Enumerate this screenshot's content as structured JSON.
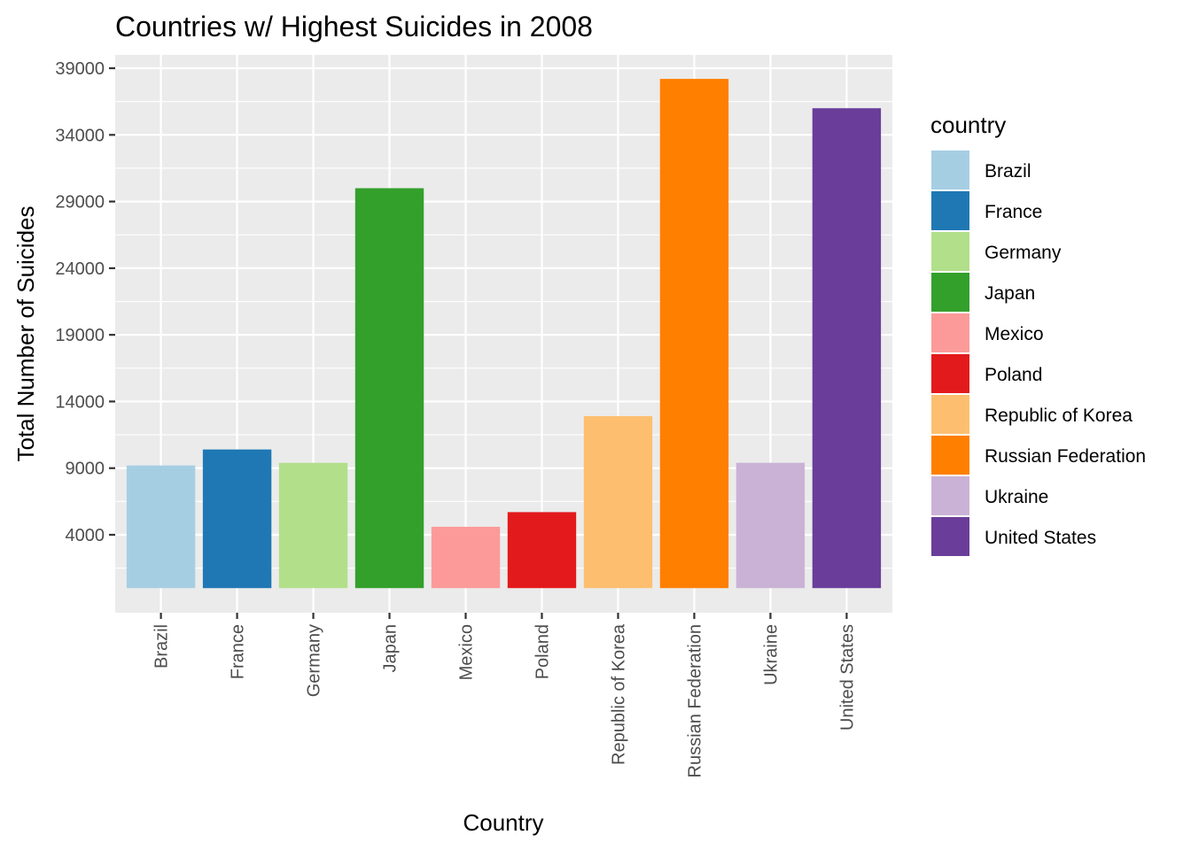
{
  "chart_data": {
    "type": "bar",
    "title": "Countries w/ Highest Suicides in 2008",
    "xlabel": "Country",
    "ylabel": "Total Number of Suicides",
    "categories": [
      "Brazil",
      "France",
      "Germany",
      "Japan",
      "Mexico",
      "Poland",
      "Republic of Korea",
      "Russian Federation",
      "Ukraine",
      "United States"
    ],
    "values": [
      9200,
      10400,
      9400,
      30000,
      4600,
      5700,
      12900,
      38200,
      9400,
      36000
    ],
    "colors": [
      "#a6cee3",
      "#1f78b4",
      "#b2df8a",
      "#33a02c",
      "#fb9a99",
      "#e31a1c",
      "#fdbf6f",
      "#ff7f00",
      "#cab2d6",
      "#6a3d9a"
    ],
    "yticks": [
      4000,
      9000,
      14000,
      19000,
      24000,
      29000,
      34000,
      39000
    ],
    "ylim": [
      -1845,
      40000
    ],
    "grid": true,
    "legend": {
      "title": "country",
      "position": "right",
      "entries": [
        "Brazil",
        "France",
        "Germany",
        "Japan",
        "Mexico",
        "Poland",
        "Republic of Korea",
        "Russian Federation",
        "Ukraine",
        "United States"
      ]
    }
  }
}
